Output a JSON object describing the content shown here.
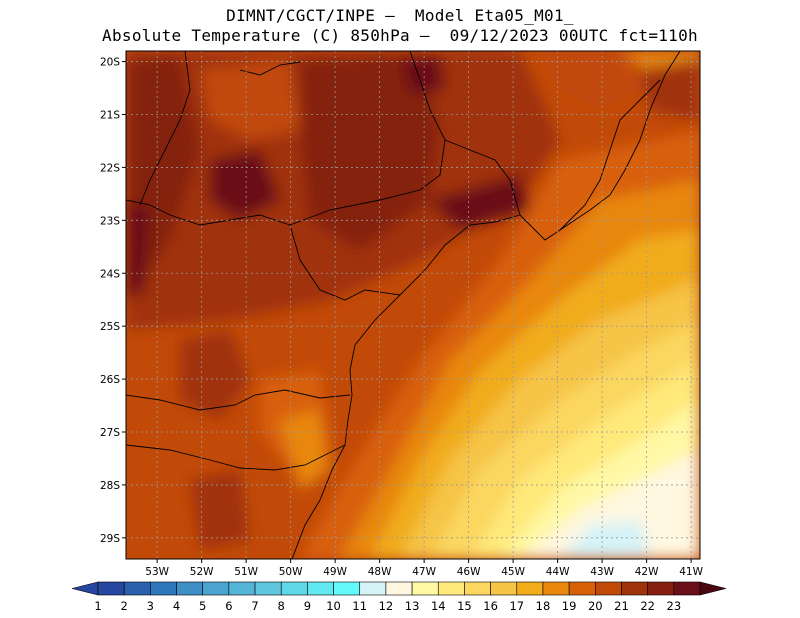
{
  "title": {
    "line1": "DIMNT/CGCT/INPE –  Model Eta05_M01_",
    "line2": "Absolute Temperature (C) 850hPa –  09/12/2023 00UTC fct=110h"
  },
  "map": {
    "lat_labels": [
      "20S",
      "21S",
      "22S",
      "23S",
      "24S",
      "25S",
      "26S",
      "27S",
      "28S",
      "29S"
    ],
    "lon_labels": [
      "53W",
      "52W",
      "51W",
      "50W",
      "49W",
      "48W",
      "47W",
      "46W",
      "45W",
      "44W",
      "43W",
      "42W",
      "41W"
    ],
    "lat_range": [
      -29.4,
      -19.8
    ],
    "lon_range": [
      -53.7,
      -40.8
    ],
    "grid": true
  },
  "colorbar": {
    "labels": [
      "1",
      "2",
      "3",
      "4",
      "5",
      "6",
      "7",
      "8",
      "9",
      "10",
      "11",
      "12",
      "13",
      "14",
      "15",
      "16",
      "17",
      "18",
      "19",
      "20",
      "21",
      "22",
      "23"
    ],
    "colors": [
      "#2547a0",
      "#2961af",
      "#2f78bb",
      "#3d8fc6",
      "#4aa4cf",
      "#54b5d6",
      "#5ec7de",
      "#5ed8e6",
      "#61e8f1",
      "#63f9fb",
      "#d6f3f8",
      "#fff7e0",
      "#fff8a4",
      "#ffe97a",
      "#fbd760",
      "#f6c446",
      "#f1ac1a",
      "#e8870c",
      "#d86108",
      "#c24a08",
      "#a03309",
      "#852010",
      "#6a0f18"
    ]
  }
}
